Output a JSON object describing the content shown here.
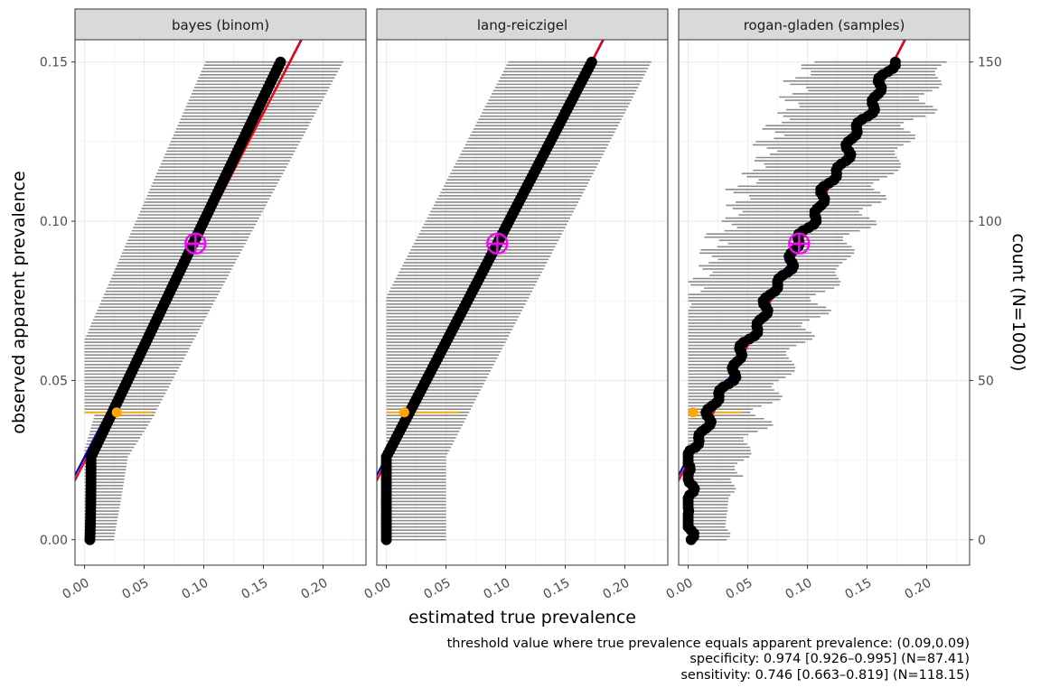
{
  "chart_data": {
    "type": "scatter",
    "panels": [
      {
        "title": "bayes (binom)",
        "method": "bayes"
      },
      {
        "title": "lang-reiczigel",
        "method": "lang"
      },
      {
        "title": "rogan-gladen (samples)",
        "method": "rogan"
      }
    ],
    "xlabel": "estimated true prevalence",
    "ylabel": "observed apparent prevalence",
    "y2label": "count (N=1000)",
    "xlim": [
      -0.008,
      0.236
    ],
    "ylim": [
      -0.008,
      0.157
    ],
    "x_ticks": [
      "0.00",
      "0.05",
      "0.10",
      "0.15",
      "0.20"
    ],
    "x_tick_values": [
      0,
      0.05,
      0.1,
      0.15,
      0.2
    ],
    "y_ticks": [
      "0.00",
      "0.05",
      "0.10",
      "0.15"
    ],
    "y_tick_values": [
      0,
      0.05,
      0.1,
      0.15
    ],
    "y2_ticks": [
      "0",
      "50",
      "100",
      "150"
    ],
    "y2_tick_values": [
      0,
      50,
      100,
      150
    ],
    "counts": {
      "min": 0,
      "max": 150,
      "step": 1,
      "N": 1000
    },
    "specificity": 0.974,
    "sensitivity": 0.746,
    "identity_line": {
      "slope": 1,
      "intercept": 0,
      "color": "#ff0000"
    },
    "calibration_line": {
      "color": "#0000cc"
    },
    "threshold_point": {
      "x": 0.093,
      "y": 0.093,
      "color": "#ff00ff"
    },
    "highlight": {
      "observed": 0.04,
      "estimates": {
        "bayes": 0.027,
        "lang": 0.015,
        "rogan": 0.004
      },
      "ci_upper": {
        "bayes": 0.057,
        "lang": 0.061,
        "rogan": 0.045
      },
      "color": "#ffa500"
    },
    "caption_lines": [
      "threshold value where true prevalence equals apparent prevalence: (0.09,0.09)",
      "specificity: 0.974 [0.926–0.995] (N=87.41)",
      "sensitivity: 0.746 [0.663–0.819] (N=118.15)"
    ],
    "colors": {
      "ci_bars": "#8c8c8c",
      "points": "#000000",
      "strip_bg": "#d9d9d9",
      "grid": "#ebebeb"
    }
  }
}
